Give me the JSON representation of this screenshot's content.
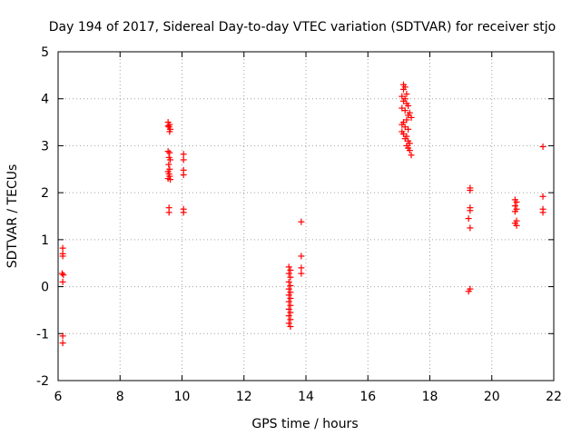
{
  "chart_data": {
    "type": "scatter",
    "title": "Day 194 of 2017, Sidereal Day-to-day VTEC variation (SDTVAR) for receiver stjo",
    "xlabel": "GPS time / hours",
    "ylabel": "SDTVAR / TECUs",
    "xlim": [
      6,
      22
    ],
    "ylim": [
      -2,
      5
    ],
    "xticks": [
      6,
      8,
      10,
      12,
      14,
      16,
      18,
      20,
      22
    ],
    "yticks": [
      -2,
      -1,
      0,
      1,
      2,
      3,
      4,
      5
    ],
    "xtick_labels": [
      "6",
      "8",
      "10",
      "12",
      "14",
      "16",
      "18",
      "20",
      "22"
    ],
    "ytick_labels": [
      "-2",
      "-1",
      "0",
      "1",
      "2",
      "3",
      "4",
      "5"
    ],
    "grid": true,
    "marker": "+",
    "series": [
      {
        "name": "SDTVAR",
        "color": "#ff0000",
        "points": [
          [
            6.15,
            0.82
          ],
          [
            6.15,
            0.7
          ],
          [
            6.15,
            0.65
          ],
          [
            6.13,
            0.28
          ],
          [
            6.17,
            0.25
          ],
          [
            6.15,
            0.1
          ],
          [
            6.15,
            -1.05
          ],
          [
            6.15,
            -1.2
          ],
          [
            9.55,
            3.5
          ],
          [
            9.6,
            3.45
          ],
          [
            9.58,
            3.4
          ],
          [
            9.62,
            3.35
          ],
          [
            9.55,
            3.42
          ],
          [
            9.6,
            3.3
          ],
          [
            9.55,
            2.88
          ],
          [
            9.6,
            2.85
          ],
          [
            9.58,
            2.75
          ],
          [
            9.62,
            2.7
          ],
          [
            9.57,
            2.6
          ],
          [
            9.6,
            2.5
          ],
          [
            9.55,
            2.45
          ],
          [
            9.58,
            2.4
          ],
          [
            9.6,
            2.35
          ],
          [
            9.55,
            2.3
          ],
          [
            9.62,
            2.28
          ],
          [
            9.58,
            1.68
          ],
          [
            9.58,
            1.58
          ],
          [
            10.05,
            2.82
          ],
          [
            10.05,
            2.7
          ],
          [
            10.05,
            2.48
          ],
          [
            10.05,
            2.38
          ],
          [
            10.05,
            1.65
          ],
          [
            10.05,
            1.58
          ],
          [
            13.45,
            0.42
          ],
          [
            13.5,
            0.35
          ],
          [
            13.45,
            0.28
          ],
          [
            13.5,
            0.2
          ],
          [
            13.45,
            0.1
          ],
          [
            13.5,
            0.02
          ],
          [
            13.45,
            -0.05
          ],
          [
            13.5,
            -0.12
          ],
          [
            13.45,
            -0.18
          ],
          [
            13.5,
            -0.25
          ],
          [
            13.45,
            -0.32
          ],
          [
            13.5,
            -0.4
          ],
          [
            13.45,
            -0.48
          ],
          [
            13.5,
            -0.55
          ],
          [
            13.45,
            -0.62
          ],
          [
            13.5,
            -0.7
          ],
          [
            13.45,
            -0.78
          ],
          [
            13.5,
            -0.85
          ],
          [
            13.85,
            1.38
          ],
          [
            13.85,
            0.65
          ],
          [
            13.85,
            0.4
          ],
          [
            13.85,
            0.28
          ],
          [
            17.1,
            3.8
          ],
          [
            17.15,
            4.2
          ],
          [
            17.2,
            4.25
          ],
          [
            17.25,
            4.1
          ],
          [
            17.2,
            4.0
          ],
          [
            17.1,
            4.05
          ],
          [
            17.15,
            3.95
          ],
          [
            17.25,
            3.9
          ],
          [
            17.3,
            3.85
          ],
          [
            17.2,
            3.75
          ],
          [
            17.35,
            3.7
          ],
          [
            17.3,
            3.65
          ],
          [
            17.4,
            3.6
          ],
          [
            17.25,
            3.55
          ],
          [
            17.15,
            3.5
          ],
          [
            17.1,
            3.45
          ],
          [
            17.2,
            3.4
          ],
          [
            17.3,
            3.35
          ],
          [
            17.1,
            3.3
          ],
          [
            17.15,
            3.25
          ],
          [
            17.25,
            3.2
          ],
          [
            17.2,
            3.15
          ],
          [
            17.3,
            3.1
          ],
          [
            17.35,
            3.05
          ],
          [
            17.25,
            3.0
          ],
          [
            17.3,
            2.95
          ],
          [
            17.35,
            2.9
          ],
          [
            17.4,
            2.8
          ],
          [
            17.15,
            4.3
          ],
          [
            19.3,
            2.1
          ],
          [
            19.3,
            2.05
          ],
          [
            19.3,
            1.68
          ],
          [
            19.3,
            1.62
          ],
          [
            19.25,
            1.45
          ],
          [
            19.3,
            1.25
          ],
          [
            19.3,
            -0.05
          ],
          [
            19.25,
            -0.1
          ],
          [
            20.75,
            1.85
          ],
          [
            20.8,
            1.8
          ],
          [
            20.75,
            1.72
          ],
          [
            20.8,
            1.65
          ],
          [
            20.75,
            1.6
          ],
          [
            20.8,
            1.4
          ],
          [
            20.75,
            1.35
          ],
          [
            20.8,
            1.3
          ],
          [
            21.65,
            2.98
          ],
          [
            21.65,
            1.92
          ],
          [
            21.65,
            1.65
          ],
          [
            21.65,
            1.58
          ]
        ]
      }
    ]
  }
}
